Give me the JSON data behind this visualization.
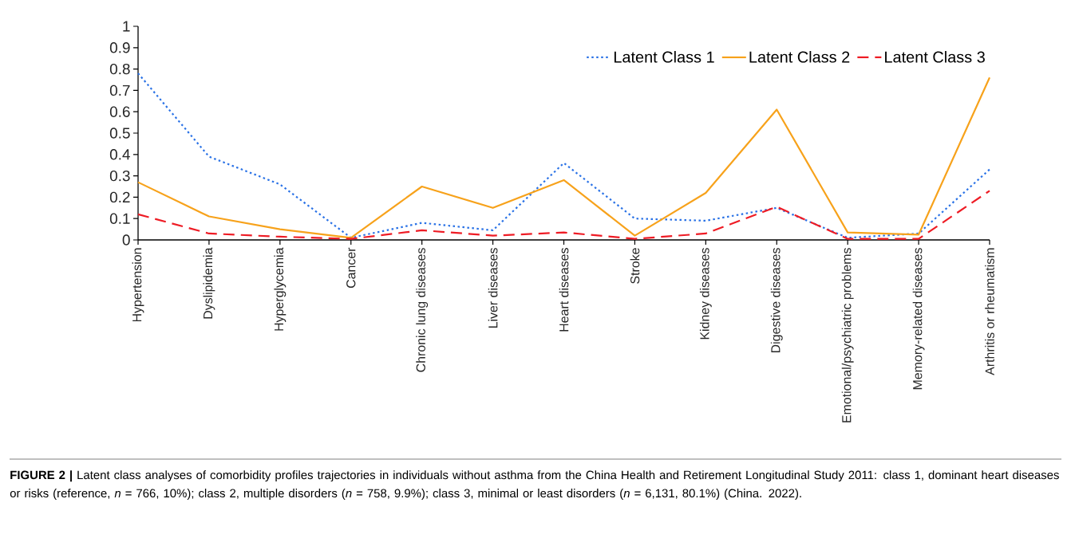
{
  "chart_data": {
    "type": "line",
    "categories": [
      "Hypertension",
      "Dyslipidemia",
      "Hyperglycemia",
      "Cancer",
      "Chronic lung diseases",
      "Liver diseases",
      "Heart diseases",
      "Stroke",
      "Kidney diseases",
      "Digestive diseases",
      "Emotional/psychiatric problems",
      "Memory-related diseases",
      "Arthritis or rheumatism"
    ],
    "series": [
      {
        "name": "Latent Class 1",
        "color": "#2a72e6",
        "line_style": "dotted",
        "values": [
          0.78,
          0.39,
          0.26,
          0.01,
          0.08,
          0.045,
          0.36,
          0.1,
          0.09,
          0.15,
          0.01,
          0.03,
          0.33
        ]
      },
      {
        "name": "Latent Class 2",
        "color": "#f7a21b",
        "line_style": "solid",
        "values": [
          0.27,
          0.11,
          0.05,
          0.01,
          0.25,
          0.15,
          0.28,
          0.02,
          0.22,
          0.61,
          0.035,
          0.025,
          0.76
        ]
      },
      {
        "name": "Latent Class 3",
        "color": "#ee1c25",
        "line_style": "dashed",
        "values": [
          0.12,
          0.03,
          0.015,
          0.005,
          0.045,
          0.02,
          0.035,
          0.005,
          0.03,
          0.155,
          0.005,
          0.005,
          0.23
        ]
      }
    ],
    "ylim": [
      0,
      1
    ],
    "yticks": [
      0,
      0.1,
      0.2,
      0.3,
      0.4,
      0.5,
      0.6,
      0.7,
      0.8,
      0.9,
      1
    ],
    "grid": false,
    "marker": "none",
    "legend": "top right",
    "annotations": [
      "**FIGURE 2 |** Latent class analyses of comorbidity profiles trajectories in individuals without asthma from the China Health and Retirement Longitudinal Study 2011: class 1, dominant heart diseases or risks (reference, *n* = 766, 10%); class 2, multiple disorders (*n* = 758, 9.9%); class 3, minimal or least disorders (*n* = 6,131, 80.1%) (China. 2022)."
    ]
  }
}
